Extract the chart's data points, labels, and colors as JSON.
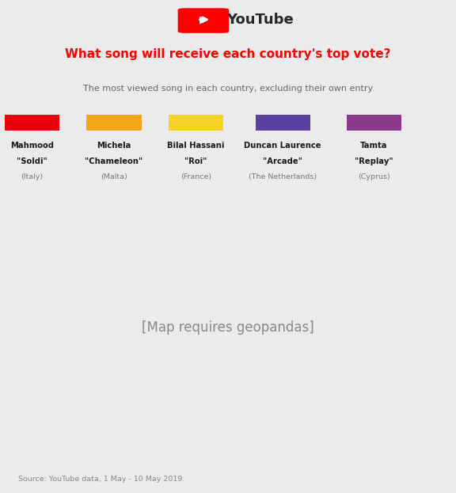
{
  "title": "What song will receive each country's top vote?",
  "subtitle": "The most viewed song in each country, excluding their own entry",
  "source": "Source: YouTube data, 1 May - 10 May 2019.",
  "bg_color": "#ebebeb",
  "white_bg": "#ffffff",
  "youtube_red": "#FF0000",
  "legend": [
    {
      "name": "Mahmood",
      "song": "\"Soldi\"",
      "country": "(Italy)",
      "color": "#E8000A"
    },
    {
      "name": "Michela",
      "song": "\"Chameleon\"",
      "country": "(Malta)",
      "color": "#F4A51A"
    },
    {
      "name": "Bilal Hassani",
      "song": "\"Roi\"",
      "country": "(France)",
      "color": "#F5D327"
    },
    {
      "name": "Duncan Laurence",
      "song": "\"Arcade\"",
      "country": "(The Netherlands)",
      "color": "#5B3FA0"
    },
    {
      "name": "Tamta",
      "song": "\"Replay\"",
      "country": "(Cyprus)",
      "color": "#8B3A8B"
    }
  ],
  "country_colors": {
    "Italy": "#E8000A",
    "Spain": "#E8000A",
    "Portugal": "#E8000A",
    "France": "#F5D327",
    "United Kingdom": "#E8000A",
    "Ireland": "#E8000A",
    "Germany": "#E8000A",
    "Austria": "#F4A51A",
    "Switzerland": "#F4A51A",
    "Belgium": "#E8000A",
    "Netherlands": "#5B3FA0",
    "Denmark": "#5B3FA0",
    "Norway": "#5B3FA0",
    "Sweden": "#5B3FA0",
    "Finland": "#5B3FA0",
    "Estonia": "#5B3FA0",
    "Latvia": "#5B3FA0",
    "Lithuania": "#5B3FA0",
    "Poland": "#5B3FA0",
    "Czech Rep.": "#F4A51A",
    "Slovakia": "#F4A51A",
    "Hungary": "#F4A51A",
    "Romania": "#F4A51A",
    "Bulgaria": "#F4A51A",
    "Greece": "#8B3A8B",
    "Croatia": "#F4A51A",
    "Slovenia": "#F4A51A",
    "Serbia": "#F4A51A",
    "Bosnia and Herz.": "#F4A51A",
    "Montenegro": "#F4A51A",
    "Albania": "#8B3A8B",
    "Macedonia": "#8B3A8B",
    "Moldova": "#F4A51A",
    "Ukraine": "#5B3FA0",
    "Belarus": "#5B3FA0",
    "Russia": "#5B3FA0",
    "Iceland": "#5B3FA0",
    "Luxembourg": "#F4A51A",
    "Malta": "#F4A51A",
    "Cyprus": "#8B3A8B",
    "Turkey": "#8B3A8B",
    "Armenia": "#8B3A8B",
    "Azerbaijan": "#8B3A8B",
    "Georgia": "#8B3A8B",
    "Israel": "#8B3A8B",
    "Australia": "#F4A51A",
    "S. Geo. and S. Sandw. Is.": "#AAAAAA",
    "Kosovo": "#F4A51A"
  },
  "default_color": "#AAAAAA",
  "map_edge_color": "#FFFFFF",
  "map_linewidth": 0.4,
  "europe_xlim": [
    -25,
    50
  ],
  "europe_ylim": [
    30,
    73
  ],
  "aus_xlim": [
    110,
    155
  ],
  "aus_ylim": [
    -45,
    -10
  ]
}
